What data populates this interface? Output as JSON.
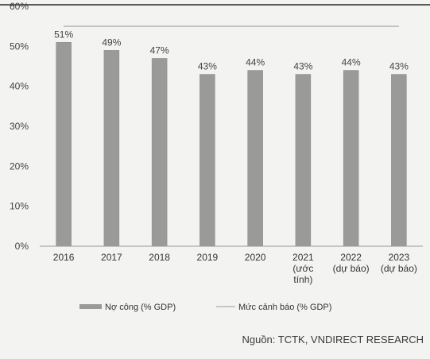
{
  "chart_data": {
    "type": "bar",
    "categories": [
      [
        "2016"
      ],
      [
        "2017"
      ],
      [
        "2018"
      ],
      [
        "2019"
      ],
      [
        "2020"
      ],
      [
        "2021",
        "(ước",
        "tính)"
      ],
      [
        "2022",
        "(dự báo)"
      ],
      [
        "2023",
        "(dự báo)"
      ]
    ],
    "series": [
      {
        "name": "Nợ công (% GDP)",
        "type": "bar",
        "values": [
          51,
          49,
          47,
          43,
          44,
          43,
          44,
          43
        ],
        "labels": [
          "51%",
          "49%",
          "47%",
          "43%",
          "44%",
          "43%",
          "44%",
          "43%"
        ],
        "color": "#9a9a9a"
      },
      {
        "name": "Mức cảnh báo (% GDP)",
        "type": "line",
        "values": [
          55,
          55,
          55,
          55,
          55,
          55,
          55,
          55
        ],
        "color": "#b8b8b8"
      }
    ],
    "yticks": [
      "0%",
      "10%",
      "20%",
      "30%",
      "40%",
      "50%",
      "60%"
    ],
    "ylim": [
      0,
      60
    ],
    "grid": false,
    "legend": "bottom"
  },
  "source": "Nguồn: TCTK, VNDIRECT RESEARCH"
}
